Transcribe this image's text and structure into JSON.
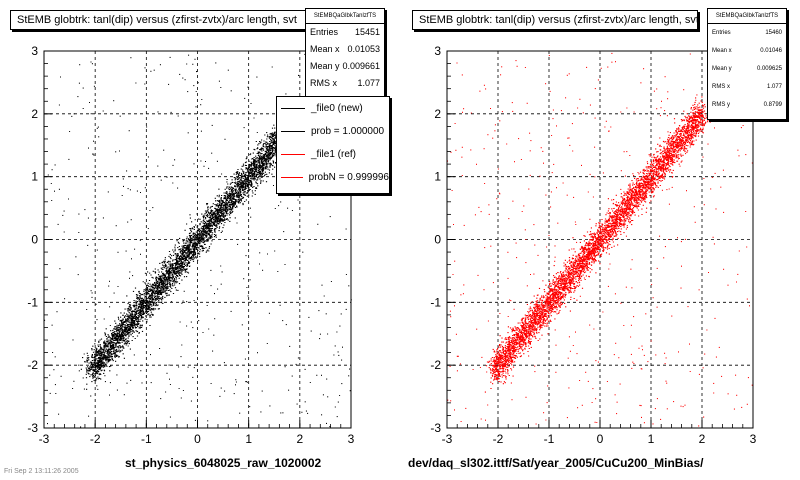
{
  "chart_data": [
    {
      "type": "scatter",
      "title": "StEMB globtrk: tanl(dip) versus (zfirst-zvtx)/arc length, svt",
      "xlabel": "st_physics_6048025_raw_1020002",
      "ylabel": "",
      "xlim": [
        -3,
        3
      ],
      "ylim": [
        -3,
        3
      ],
      "xticks": [
        "-3",
        "-2",
        "-1",
        "0",
        "1",
        "2",
        "3"
      ],
      "yticks": [
        "-3",
        "-2",
        "-1",
        "0",
        "1",
        "2",
        "3"
      ],
      "grid": true,
      "color": "#000000",
      "trend": {
        "x_from": -2.1,
        "x_to": 1.9,
        "slope": 1.0,
        "spread": 0.12
      },
      "stats": {
        "header": "StEMBQaGlbkTanlzfTS",
        "rows": [
          {
            "label": "Entries",
            "value": "15451"
          },
          {
            "label": "Mean x",
            "value": "0.01053"
          },
          {
            "label": "Mean y",
            "value": "0.009661"
          },
          {
            "label": "RMS x",
            "value": "1.077"
          }
        ]
      },
      "legend": {
        "placement": "top-right",
        "entries": [
          {
            "label": "_file0 (new)",
            "color": "#000000"
          },
          {
            "label": "prob = 1.000000",
            "color": "#000000"
          },
          {
            "label": "_file1 (ref)",
            "color": "#ff0000"
          },
          {
            "label": "probN = 0.999996",
            "color": "#ff0000"
          }
        ]
      }
    },
    {
      "type": "scatter",
      "title": "StEMB globtrk: tanl(dip) versus (zfirst-zvtx)/arc length, svt",
      "xlabel": "dev/daq_sl302.ittf/Sat/year_2005/CuCu200_MinBias/",
      "ylabel": "",
      "xlim": [
        -3,
        3
      ],
      "ylim": [
        -3,
        3
      ],
      "xticks": [
        "-3",
        "-2",
        "-1",
        "0",
        "1",
        "2",
        "3"
      ],
      "yticks": [
        "-3",
        "-2",
        "-1",
        "0",
        "1",
        "2",
        "3"
      ],
      "grid": true,
      "color": "#ff0000",
      "trend": {
        "x_from": -2.1,
        "x_to": 2.0,
        "slope": 1.0,
        "spread": 0.12
      },
      "stats": {
        "header": "StEMBQaGlbkTanlzfTS",
        "rows": [
          {
            "label": "Entries",
            "value": "15460"
          },
          {
            "label": "Mean x",
            "value": "0.01046"
          },
          {
            "label": "Mean y",
            "value": "0.009625"
          },
          {
            "label": "RMS x",
            "value": "1.077"
          },
          {
            "label": "RMS y",
            "value": "0.8799"
          }
        ]
      }
    }
  ],
  "footer": "Fri Sep  2 13:11:26 2005"
}
